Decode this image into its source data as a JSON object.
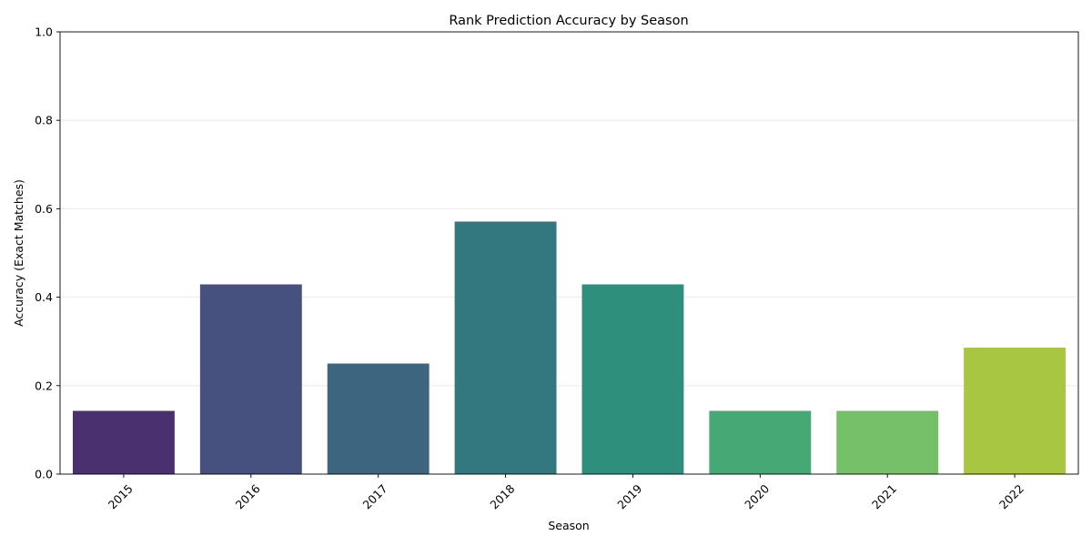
{
  "chart_data": {
    "type": "bar",
    "title": "Rank Prediction Accuracy by Season",
    "xlabel": "Season",
    "ylabel": "Accuracy (Exact Matches)",
    "categories": [
      "2015",
      "2016",
      "2017",
      "2018",
      "2019",
      "2020",
      "2021",
      "2022"
    ],
    "values": [
      0.143,
      0.429,
      0.25,
      0.571,
      0.429,
      0.143,
      0.143,
      0.286
    ],
    "colors": [
      "#4a306f",
      "#47517f",
      "#3d6580",
      "#33787f",
      "#2e8f7d",
      "#45a875",
      "#75bf66",
      "#a8c641"
    ],
    "ylim": [
      0,
      1.0
    ],
    "yticks": [
      "0.0",
      "0.2",
      "0.4",
      "0.6",
      "0.8",
      "1.0"
    ],
    "ytick_values": [
      0,
      0.2,
      0.4,
      0.6,
      0.8,
      1.0
    ],
    "grid": "y-axis, light",
    "legend": "none",
    "xtick_rotation": "45 degrees"
  }
}
